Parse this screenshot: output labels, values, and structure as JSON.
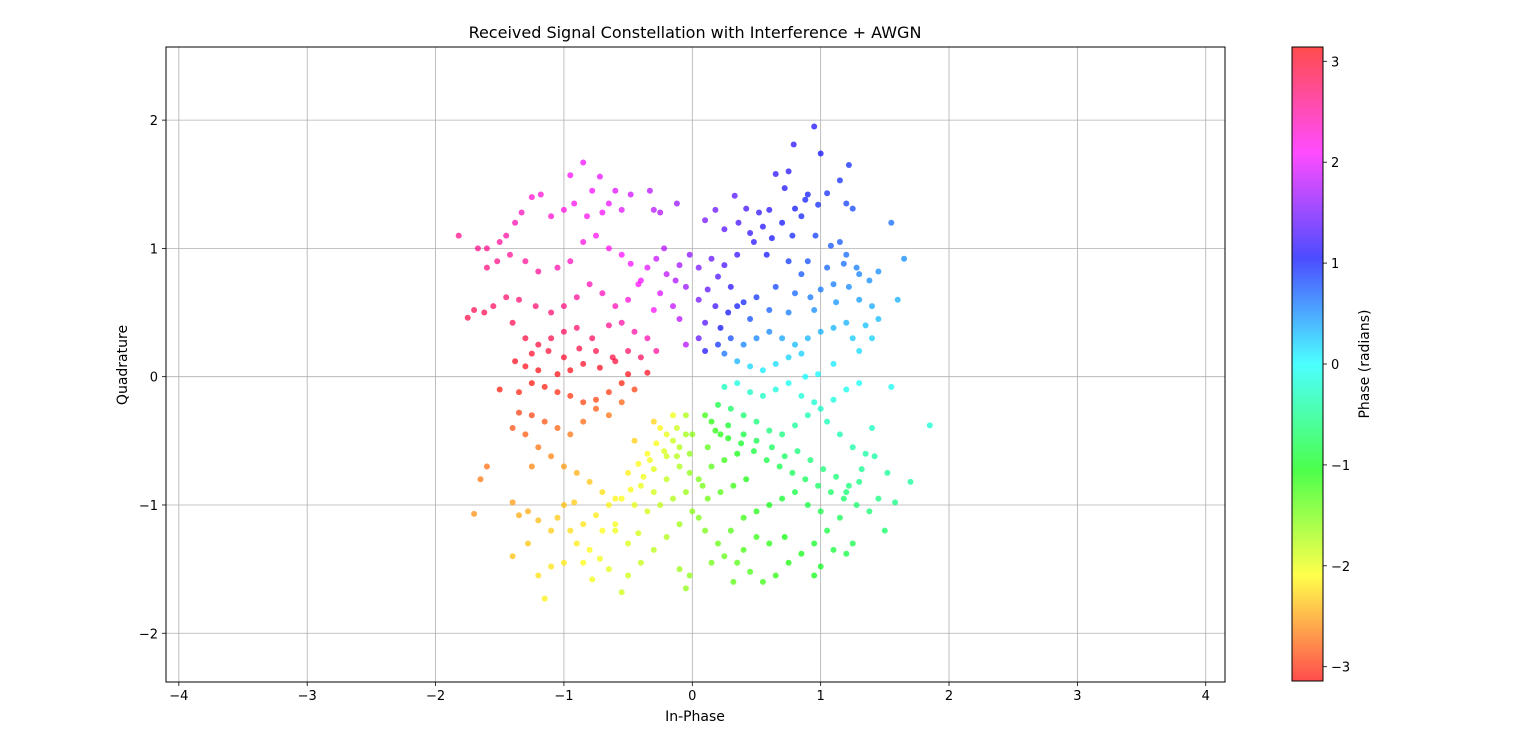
{
  "chart_data": {
    "type": "scatter",
    "title": "Received Signal Constellation with Interference + AWGN",
    "xlabel": "In-Phase",
    "ylabel": "Quadrature",
    "xlim": [
      -4.1,
      4.15
    ],
    "ylim": [
      -2.38,
      2.57
    ],
    "xticks": [
      -4,
      -3,
      -2,
      -1,
      0,
      1,
      2,
      3,
      4
    ],
    "xtick_labels": [
      "−4",
      "−3",
      "−2",
      "−1",
      "0",
      "1",
      "2",
      "3",
      "4"
    ],
    "yticks": [
      -2,
      -1,
      0,
      1,
      2
    ],
    "ytick_labels": [
      "−2",
      "−1",
      "0",
      "1",
      "2"
    ],
    "grid": true,
    "colorbar": {
      "label": "Phase (radians)",
      "range": [
        -3.14159,
        3.14159
      ],
      "ticks": [
        3,
        2,
        1,
        0,
        -1,
        -2,
        -3
      ],
      "tick_labels": [
        "3",
        "2",
        "1",
        "0",
        "−1",
        "−2",
        "−3"
      ],
      "colormap": "hsv",
      "alpha": 0.7
    },
    "points": [
      [
        0.95,
        1.95
      ],
      [
        0.79,
        1.81
      ],
      [
        1.0,
        1.74
      ],
      [
        1.22,
        1.65
      ],
      [
        1.15,
        1.53
      ],
      [
        0.65,
        1.58
      ],
      [
        0.75,
        1.6
      ],
      [
        0.72,
        1.47
      ],
      [
        0.9,
        1.42
      ],
      [
        1.05,
        1.43
      ],
      [
        1.2,
        1.35
      ],
      [
        1.25,
        1.31
      ],
      [
        0.98,
        1.34
      ],
      [
        0.88,
        1.38
      ],
      [
        0.8,
        1.31
      ],
      [
        0.6,
        1.3
      ],
      [
        0.52,
        1.28
      ],
      [
        0.42,
        1.31
      ],
      [
        0.33,
        1.41
      ],
      [
        0.18,
        1.3
      ],
      [
        0.1,
        1.22
      ],
      [
        0.25,
        1.15
      ],
      [
        0.36,
        1.2
      ],
      [
        0.45,
        1.12
      ],
      [
        0.55,
        1.17
      ],
      [
        0.62,
        1.08
      ],
      [
        0.7,
        1.2
      ],
      [
        0.78,
        1.1
      ],
      [
        0.85,
        1.25
      ],
      [
        0.96,
        1.1
      ],
      [
        1.08,
        1.02
      ],
      [
        1.15,
        1.05
      ],
      [
        1.2,
        0.95
      ],
      [
        0.9,
        0.9
      ],
      [
        0.75,
        0.9
      ],
      [
        0.58,
        0.95
      ],
      [
        0.48,
        1.05
      ],
      [
        0.35,
        0.95
      ],
      [
        0.25,
        0.87
      ],
      [
        0.15,
        0.92
      ],
      [
        0.05,
        0.85
      ],
      [
        0.2,
        0.78
      ],
      [
        0.3,
        0.7
      ],
      [
        0.12,
        0.68
      ],
      [
        0.05,
        0.6
      ],
      [
        0.18,
        0.55
      ],
      [
        0.28,
        0.5
      ],
      [
        0.4,
        0.58
      ],
      [
        0.1,
        0.42
      ],
      [
        0.22,
        0.38
      ],
      [
        0.05,
        0.3
      ],
      [
        0.1,
        0.2
      ],
      [
        0.2,
        0.25
      ],
      [
        -0.05,
        0.25
      ],
      [
        -0.02,
        0.95
      ],
      [
        -0.1,
        0.87
      ],
      [
        -0.13,
        0.75
      ],
      [
        -0.2,
        0.8
      ],
      [
        -0.25,
        0.65
      ],
      [
        -0.05,
        0.7
      ],
      [
        -0.15,
        0.55
      ],
      [
        -0.3,
        0.52
      ],
      [
        -0.1,
        0.45
      ],
      [
        -0.22,
        1.0
      ],
      [
        -0.28,
        0.92
      ],
      [
        -0.35,
        0.85
      ],
      [
        -0.4,
        0.75
      ],
      [
        -0.3,
        1.3
      ],
      [
        -0.25,
        1.28
      ],
      [
        -0.12,
        1.35
      ],
      [
        -0.33,
        1.45
      ],
      [
        -0.48,
        1.42
      ],
      [
        -0.6,
        1.45
      ],
      [
        -0.72,
        1.56
      ],
      [
        -0.85,
        1.67
      ],
      [
        -0.95,
        1.57
      ],
      [
        -0.78,
        1.45
      ],
      [
        -0.65,
        1.35
      ],
      [
        -0.55,
        1.3
      ],
      [
        -0.7,
        1.28
      ],
      [
        -0.82,
        1.25
      ],
      [
        -0.92,
        1.35
      ],
      [
        -1.0,
        1.3
      ],
      [
        -1.1,
        1.25
      ],
      [
        -1.18,
        1.42
      ],
      [
        -1.25,
        1.4
      ],
      [
        -1.33,
        1.28
      ],
      [
        -1.38,
        1.2
      ],
      [
        -1.45,
        1.1
      ],
      [
        -1.5,
        1.05
      ],
      [
        -1.6,
        1.0
      ],
      [
        -1.67,
        1.0
      ],
      [
        -1.82,
        1.1
      ],
      [
        -1.6,
        0.85
      ],
      [
        -1.52,
        0.9
      ],
      [
        -1.42,
        0.95
      ],
      [
        -1.3,
        0.9
      ],
      [
        -1.2,
        0.82
      ],
      [
        -1.05,
        0.85
      ],
      [
        -0.95,
        0.9
      ],
      [
        -0.85,
        1.05
      ],
      [
        -0.75,
        1.1
      ],
      [
        -0.65,
        1.0
      ],
      [
        -0.55,
        0.95
      ],
      [
        -0.48,
        0.88
      ],
      [
        -0.42,
        0.72
      ],
      [
        -0.5,
        0.6
      ],
      [
        -0.6,
        0.55
      ],
      [
        -0.7,
        0.65
      ],
      [
        -0.8,
        0.72
      ],
      [
        -0.9,
        0.62
      ],
      [
        -1.0,
        0.55
      ],
      [
        -1.1,
        0.5
      ],
      [
        -1.22,
        0.55
      ],
      [
        -1.35,
        0.6
      ],
      [
        -1.45,
        0.62
      ],
      [
        -1.55,
        0.55
      ],
      [
        -1.62,
        0.5
      ],
      [
        -1.75,
        0.46
      ],
      [
        -1.7,
        0.52
      ],
      [
        -1.4,
        0.42
      ],
      [
        -1.3,
        0.3
      ],
      [
        -1.2,
        0.25
      ],
      [
        -1.1,
        0.3
      ],
      [
        -1.0,
        0.35
      ],
      [
        -0.9,
        0.38
      ],
      [
        -0.78,
        0.3
      ],
      [
        -0.65,
        0.4
      ],
      [
        -0.55,
        0.42
      ],
      [
        -0.45,
        0.35
      ],
      [
        -0.35,
        0.3
      ],
      [
        -0.28,
        0.2
      ],
      [
        -0.4,
        0.15
      ],
      [
        -0.5,
        0.2
      ],
      [
        -0.62,
        0.15
      ],
      [
        -0.75,
        0.2
      ],
      [
        -0.88,
        0.22
      ],
      [
        -1.0,
        0.15
      ],
      [
        -1.12,
        0.2
      ],
      [
        -1.25,
        0.18
      ],
      [
        -1.38,
        0.12
      ],
      [
        -1.3,
        0.08
      ],
      [
        -1.2,
        0.05
      ],
      [
        -1.05,
        0.02
      ],
      [
        -0.95,
        0.05
      ],
      [
        -0.85,
        0.1
      ],
      [
        -0.72,
        0.07
      ],
      [
        -0.6,
        0.12
      ],
      [
        -0.5,
        0.02
      ],
      [
        -0.35,
        0.03
      ],
      [
        1.3,
        0.8
      ],
      [
        1.38,
        0.75
      ],
      [
        1.45,
        0.82
      ],
      [
        1.22,
        0.7
      ],
      [
        1.1,
        0.72
      ],
      [
        1.0,
        0.68
      ],
      [
        0.92,
        0.62
      ],
      [
        0.8,
        0.65
      ],
      [
        1.3,
        0.6
      ],
      [
        1.4,
        0.55
      ],
      [
        1.45,
        0.45
      ],
      [
        1.35,
        0.4
      ],
      [
        1.2,
        0.42
      ],
      [
        1.1,
        0.38
      ],
      [
        1.0,
        0.35
      ],
      [
        0.9,
        0.3
      ],
      [
        0.8,
        0.25
      ],
      [
        0.7,
        0.3
      ],
      [
        0.6,
        0.35
      ],
      [
        0.5,
        0.3
      ],
      [
        0.4,
        0.25
      ],
      [
        0.3,
        0.3
      ],
      [
        0.25,
        0.18
      ],
      [
        0.35,
        0.12
      ],
      [
        0.45,
        0.08
      ],
      [
        0.55,
        0.05
      ],
      [
        0.65,
        0.1
      ],
      [
        0.75,
        0.15
      ],
      [
        0.85,
        0.18
      ],
      [
        1.25,
        0.3
      ],
      [
        1.4,
        0.3
      ],
      [
        1.6,
        0.6
      ],
      [
        1.65,
        0.92
      ],
      [
        1.55,
        1.2
      ],
      [
        1.3,
        0.2
      ],
      [
        1.1,
        0.1
      ],
      [
        0.98,
        0.02
      ],
      [
        0.88,
        0.0
      ],
      [
        0.6,
        0.52
      ],
      [
        0.45,
        0.45
      ],
      [
        0.75,
        0.5
      ],
      [
        0.35,
        0.55
      ],
      [
        0.5,
        0.62
      ],
      [
        0.65,
        0.7
      ],
      [
        0.85,
        0.8
      ],
      [
        1.05,
        0.85
      ],
      [
        1.18,
        0.88
      ],
      [
        1.28,
        0.85
      ],
      [
        1.12,
        0.58
      ],
      [
        0.95,
        0.52
      ],
      [
        1.85,
        -0.38
      ],
      [
        1.55,
        -0.08
      ],
      [
        1.4,
        -0.4
      ],
      [
        1.52,
        -0.75
      ],
      [
        1.45,
        -0.95
      ],
      [
        1.3,
        -0.82
      ],
      [
        1.2,
        -0.9
      ],
      [
        1.35,
        -0.6
      ],
      [
        1.25,
        -0.55
      ],
      [
        1.15,
        -0.45
      ],
      [
        1.05,
        -0.35
      ],
      [
        0.95,
        -0.2
      ],
      [
        0.85,
        -0.15
      ],
      [
        0.75,
        -0.05
      ],
      [
        0.65,
        -0.1
      ],
      [
        0.55,
        -0.15
      ],
      [
        0.45,
        -0.12
      ],
      [
        0.35,
        -0.05
      ],
      [
        0.25,
        -0.08
      ],
      [
        1.3,
        -0.05
      ],
      [
        1.2,
        -0.1
      ],
      [
        1.1,
        -0.18
      ],
      [
        1.0,
        -0.25
      ],
      [
        0.9,
        -0.3
      ],
      [
        0.8,
        -0.38
      ],
      [
        0.7,
        -0.45
      ],
      [
        0.6,
        -0.42
      ],
      [
        0.5,
        -0.35
      ],
      [
        0.4,
        -0.3
      ],
      [
        0.3,
        -0.25
      ],
      [
        0.2,
        -0.22
      ],
      [
        0.1,
        -0.3
      ],
      [
        0.18,
        -0.42
      ],
      [
        0.28,
        -0.48
      ],
      [
        0.38,
        -0.52
      ],
      [
        0.48,
        -0.58
      ],
      [
        0.58,
        -0.65
      ],
      [
        0.68,
        -0.7
      ],
      [
        0.78,
        -0.75
      ],
      [
        0.88,
        -0.8
      ],
      [
        0.98,
        -0.85
      ],
      [
        1.08,
        -0.9
      ],
      [
        1.18,
        -0.95
      ],
      [
        1.28,
        -1.0
      ],
      [
        1.38,
        -1.05
      ],
      [
        1.5,
        -1.2
      ],
      [
        1.58,
        -0.98
      ],
      [
        1.7,
        -0.82
      ],
      [
        1.15,
        -1.1
      ],
      [
        1.05,
        -1.2
      ],
      [
        0.95,
        -1.3
      ],
      [
        0.85,
        -1.38
      ],
      [
        0.75,
        -1.45
      ],
      [
        0.65,
        -1.55
      ],
      [
        0.55,
        -1.6
      ],
      [
        0.45,
        -1.52
      ],
      [
        0.35,
        -1.45
      ],
      [
        0.25,
        -1.4
      ],
      [
        0.15,
        -1.45
      ],
      [
        0.2,
        -1.3
      ],
      [
        0.3,
        -1.2
      ],
      [
        0.4,
        -1.1
      ],
      [
        0.5,
        -1.05
      ],
      [
        0.6,
        -1.0
      ],
      [
        0.7,
        -0.95
      ],
      [
        0.8,
        -0.9
      ],
      [
        0.9,
        -1.0
      ],
      [
        1.0,
        -1.05
      ],
      [
        1.1,
        -1.35
      ],
      [
        1.2,
        -1.38
      ],
      [
        1.25,
        -1.3
      ],
      [
        0.95,
        -1.55
      ],
      [
        1.0,
        -1.48
      ],
      [
        0.72,
        -1.25
      ],
      [
        0.6,
        -1.3
      ],
      [
        0.5,
        -1.25
      ],
      [
        0.4,
        -1.35
      ],
      [
        0.32,
        -1.6
      ],
      [
        0.1,
        -1.2
      ],
      [
        0.05,
        -1.1
      ],
      [
        0.12,
        -0.95
      ],
      [
        0.22,
        -0.9
      ],
      [
        0.32,
        -0.85
      ],
      [
        0.42,
        -0.8
      ],
      [
        0.05,
        -0.8
      ],
      [
        0.15,
        -0.7
      ],
      [
        0.25,
        -0.65
      ],
      [
        0.35,
        -0.6
      ],
      [
        0.12,
        -0.55
      ],
      [
        0.22,
        -0.45
      ],
      [
        -0.05,
        -0.3
      ],
      [
        -0.12,
        -0.4
      ],
      [
        -0.2,
        -0.45
      ],
      [
        -0.28,
        -0.52
      ],
      [
        -0.35,
        -0.6
      ],
      [
        -0.42,
        -0.68
      ],
      [
        -0.5,
        -0.75
      ],
      [
        -0.4,
        -0.85
      ],
      [
        -0.3,
        -0.9
      ],
      [
        -0.2,
        -0.8
      ],
      [
        -0.1,
        -0.7
      ],
      [
        -0.02,
        -0.6
      ],
      [
        -0.1,
        -0.55
      ],
      [
        -0.2,
        -0.62
      ],
      [
        -0.3,
        -0.72
      ],
      [
        -0.38,
        -0.78
      ],
      [
        -0.48,
        -0.88
      ],
      [
        -0.55,
        -0.95
      ],
      [
        -0.45,
        -1.0
      ],
      [
        -0.35,
        -1.05
      ],
      [
        -0.25,
        -1.0
      ],
      [
        -0.15,
        -0.95
      ],
      [
        -0.05,
        -0.9
      ],
      [
        0.0,
        -1.05
      ],
      [
        -0.1,
        -1.15
      ],
      [
        -0.2,
        -1.25
      ],
      [
        -0.3,
        -1.35
      ],
      [
        -0.4,
        -1.45
      ],
      [
        -0.5,
        -1.55
      ],
      [
        -0.55,
        -1.68
      ],
      [
        -0.65,
        -1.5
      ],
      [
        -0.72,
        -1.42
      ],
      [
        -0.8,
        -1.35
      ],
      [
        -0.9,
        -1.3
      ],
      [
        -1.0,
        -1.45
      ],
      [
        -0.95,
        -1.2
      ],
      [
        -0.85,
        -1.15
      ],
      [
        -0.75,
        -1.08
      ],
      [
        -0.65,
        -1.0
      ],
      [
        -0.6,
        -1.2
      ],
      [
        -0.5,
        -1.3
      ],
      [
        -0.42,
        -1.22
      ],
      [
        -0.1,
        -1.5
      ],
      [
        -0.05,
        -1.65
      ],
      [
        -0.02,
        -1.55
      ],
      [
        -0.25,
        -0.4
      ],
      [
        -0.15,
        -0.3
      ],
      [
        -0.3,
        -0.35
      ],
      [
        -0.45,
        -0.5
      ],
      [
        -0.05,
        -0.45
      ],
      [
        -0.55,
        -0.2
      ],
      [
        -0.65,
        -0.3
      ],
      [
        -0.75,
        -0.25
      ],
      [
        -0.85,
        -0.35
      ],
      [
        -0.95,
        -0.45
      ],
      [
        -1.05,
        -0.4
      ],
      [
        -1.15,
        -0.35
      ],
      [
        -1.25,
        -0.3
      ],
      [
        -1.35,
        -0.28
      ],
      [
        -1.4,
        -0.4
      ],
      [
        -1.3,
        -0.45
      ],
      [
        -1.2,
        -0.55
      ],
      [
        -1.1,
        -0.62
      ],
      [
        -1.0,
        -0.7
      ],
      [
        -0.9,
        -0.75
      ],
      [
        -0.8,
        -0.82
      ],
      [
        -0.7,
        -0.9
      ],
      [
        -0.6,
        -0.95
      ],
      [
        -0.45,
        -0.1
      ],
      [
        -0.55,
        -0.05
      ],
      [
        -0.65,
        -0.12
      ],
      [
        -0.75,
        -0.18
      ],
      [
        -0.85,
        -0.2
      ],
      [
        -0.95,
        -0.15
      ],
      [
        -1.05,
        -0.12
      ],
      [
        -1.15,
        -0.08
      ],
      [
        -1.25,
        -0.05
      ],
      [
        -1.35,
        -0.12
      ],
      [
        -1.5,
        -0.1
      ],
      [
        -1.6,
        -0.7
      ],
      [
        -1.65,
        -0.8
      ],
      [
        -1.7,
        -1.07
      ],
      [
        -1.4,
        -0.98
      ],
      [
        -1.35,
        -1.08
      ],
      [
        -1.28,
        -1.05
      ],
      [
        -1.2,
        -1.12
      ],
      [
        -1.1,
        -1.2
      ],
      [
        -1.05,
        -1.1
      ],
      [
        -1.0,
        -1.0
      ],
      [
        -0.92,
        -0.98
      ],
      [
        -1.25,
        -0.7
      ],
      [
        -1.4,
        -1.4
      ],
      [
        -1.28,
        -1.3
      ],
      [
        -1.15,
        -1.73
      ],
      [
        -1.2,
        -1.55
      ],
      [
        -1.1,
        -1.48
      ],
      [
        -0.78,
        -1.58
      ],
      [
        -0.85,
        -1.45
      ],
      [
        -0.7,
        -1.2
      ],
      [
        -0.6,
        -1.15
      ],
      [
        -0.15,
        -0.5
      ],
      [
        -0.22,
        -0.58
      ],
      [
        -0.33,
        -0.65
      ],
      [
        -0.12,
        -0.62
      ],
      [
        -0.02,
        -0.75
      ],
      [
        0.08,
        -0.85
      ],
      [
        0.0,
        -0.45
      ],
      [
        0.15,
        -0.35
      ],
      [
        0.28,
        -0.38
      ],
      [
        0.4,
        -0.45
      ],
      [
        0.5,
        -0.5
      ],
      [
        0.62,
        -0.55
      ],
      [
        0.72,
        -0.62
      ],
      [
        0.82,
        -0.58
      ],
      [
        0.92,
        -0.65
      ],
      [
        1.02,
        -0.72
      ],
      [
        1.12,
        -0.78
      ],
      [
        1.22,
        -0.85
      ],
      [
        1.32,
        -0.72
      ],
      [
        1.42,
        -0.62
      ]
    ]
  }
}
